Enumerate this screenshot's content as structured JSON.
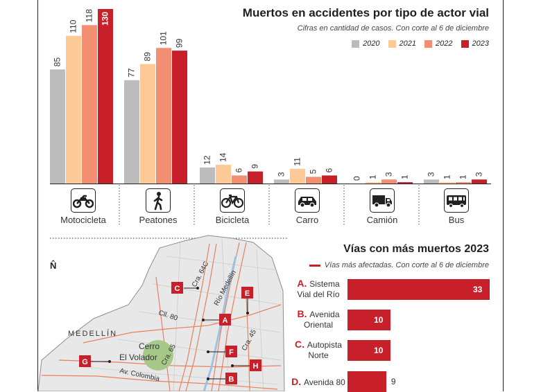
{
  "chart_data": [
    {
      "type": "bar",
      "title": "Muertos en accidentes por tipo de actor vial",
      "subtitle": "Cifras en cantidad de casos. Con corte al 6 de diciembre",
      "categories": [
        "Motocicleta",
        "Peatones",
        "Bicicleta",
        "Carro",
        "Camión",
        "Bus"
      ],
      "category_icons": [
        "motorcycle-icon",
        "pedestrian-icon",
        "bicycle-icon",
        "car-icon",
        "truck-icon",
        "bus-icon"
      ],
      "series": [
        {
          "name": "2020",
          "color": "#bdbcbc",
          "values": [
            85,
            77,
            12,
            3,
            0,
            3
          ]
        },
        {
          "name": "2021",
          "color": "#fcc997",
          "values": [
            110,
            89,
            14,
            11,
            1,
            1
          ]
        },
        {
          "name": "2022",
          "color": "#f28e72",
          "values": [
            118,
            101,
            6,
            5,
            3,
            1
          ]
        },
        {
          "name": "2023",
          "color": "#c8202a",
          "values": [
            130,
            99,
            9,
            6,
            1,
            3
          ]
        }
      ],
      "ylim": [
        0,
        130
      ],
      "legend": "top-right"
    },
    {
      "type": "bar",
      "orientation": "horizontal",
      "title": "Vías con más muertos 2023",
      "subtitle": "Vías más afectadas. Con corte al 6 de diciembre",
      "categories": [
        {
          "letter": "A.",
          "name": "Sistema Vial del Río"
        },
        {
          "letter": "B.",
          "name": "Avenida Oriental"
        },
        {
          "letter": "C.",
          "name": "Autopista Norte"
        },
        {
          "letter": "D.",
          "name": "Avenida 80"
        }
      ],
      "values": [
        33,
        10,
        10,
        9
      ],
      "color": "#c8202a"
    }
  ],
  "map": {
    "north": "N̂",
    "city": "MEDELLÍN",
    "landmark": "Cerro El Volador",
    "streets": [
      "Cra. 64C",
      "Río Medellín",
      "Cll. 80",
      "Cra. 65",
      "Cra. 45",
      "Av. Colombia"
    ],
    "markers": [
      "C",
      "E",
      "A",
      "F",
      "H",
      "B",
      "G"
    ],
    "colors": {
      "road": "#e97f5c",
      "land": "#e9e8e8",
      "park": "#a6c98a",
      "accent": "#c8202a"
    }
  }
}
